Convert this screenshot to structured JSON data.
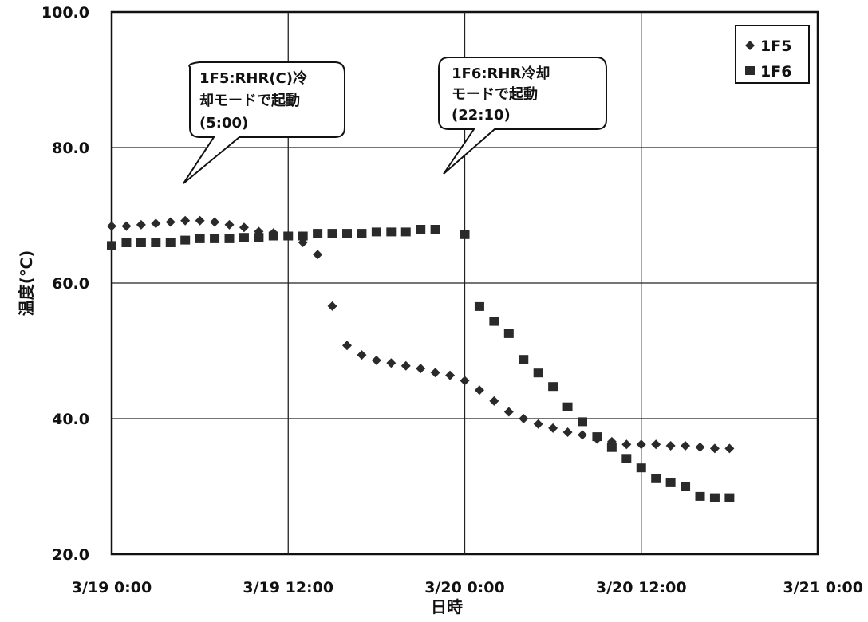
{
  "chart_data": {
    "type": "scatter",
    "title": "",
    "xlabel": "日時",
    "ylabel": "温度(℃)",
    "ylim": [
      20,
      100
    ],
    "xlim": [
      "3/19 0:00",
      "3/21 0:00"
    ],
    "yticks": [
      "20.0",
      "40.0",
      "60.0",
      "80.0",
      "100.0"
    ],
    "xticks": [
      "3/19 0:00",
      "3/19 12:00",
      "3/20 0:00",
      "3/20 12:00",
      "3/21 0:00"
    ],
    "grid": true,
    "legend_position": "top-right",
    "series": [
      {
        "name": "1F5",
        "marker": "diamond",
        "color": "#2a2a2a",
        "x": [
          "3/19 0:00",
          "3/19 1:00",
          "3/19 2:00",
          "3/19 3:00",
          "3/19 4:00",
          "3/19 5:00",
          "3/19 6:00",
          "3/19 7:00",
          "3/19 8:00",
          "3/19 9:00",
          "3/19 10:00",
          "3/19 11:00",
          "3/19 12:00",
          "3/19 13:00",
          "3/19 14:00",
          "3/19 15:00",
          "3/19 16:00",
          "3/19 17:00",
          "3/19 18:00",
          "3/19 19:00",
          "3/19 20:00",
          "3/19 21:00",
          "3/19 22:00",
          "3/19 23:00",
          "3/20 0:00",
          "3/20 1:00",
          "3/20 2:00",
          "3/20 3:00",
          "3/20 4:00",
          "3/20 5:00",
          "3/20 6:00",
          "3/20 7:00",
          "3/20 8:00",
          "3/20 9:00",
          "3/20 10:00",
          "3/20 11:00",
          "3/20 12:00",
          "3/20 13:00",
          "3/20 14:00",
          "3/20 15:00",
          "3/20 16:00",
          "3/20 17:00",
          "3/20 18:00"
        ],
        "y": [
          68.4,
          68.4,
          68.6,
          68.8,
          69.0,
          69.2,
          69.2,
          69.0,
          68.6,
          68.2,
          67.6,
          67.4,
          67.0,
          66.0,
          64.2,
          56.6,
          50.8,
          49.4,
          48.6,
          48.2,
          47.8,
          47.4,
          46.8,
          46.4,
          45.6,
          44.2,
          42.6,
          41.0,
          40.0,
          39.2,
          38.6,
          38.0,
          37.6,
          37.0,
          36.6,
          36.2,
          36.2,
          36.2,
          36.0,
          36.0,
          35.8,
          35.6,
          35.6
        ]
      },
      {
        "name": "1F6",
        "marker": "square",
        "color": "#2a2a2a",
        "x": [
          "3/19 0:00",
          "3/19 1:00",
          "3/19 2:00",
          "3/19 3:00",
          "3/19 4:00",
          "3/19 5:00",
          "3/19 6:00",
          "3/19 7:00",
          "3/19 8:00",
          "3/19 9:00",
          "3/19 10:00",
          "3/19 11:00",
          "3/19 12:00",
          "3/19 13:00",
          "3/19 14:00",
          "3/19 15:00",
          "3/19 16:00",
          "3/19 17:00",
          "3/19 18:00",
          "3/19 19:00",
          "3/19 20:00",
          "3/19 21:00",
          "3/19 22:00",
          "3/20 0:00",
          "3/20 1:00",
          "3/20 2:00",
          "3/20 3:00",
          "3/20 4:00",
          "3/20 5:00",
          "3/20 6:00",
          "3/20 7:00",
          "3/20 8:00",
          "3/20 9:00",
          "3/20 10:00",
          "3/20 11:00",
          "3/20 12:00",
          "3/20 13:00",
          "3/20 14:00",
          "3/20 15:00",
          "3/20 16:00",
          "3/20 17:00",
          "3/20 18:00"
        ],
        "y": [
          65.6,
          66.0,
          66.0,
          66.0,
          66.0,
          66.4,
          66.6,
          66.6,
          66.6,
          66.8,
          66.8,
          67.0,
          67.0,
          67.0,
          67.4,
          67.4,
          67.4,
          67.4,
          67.6,
          67.6,
          67.6,
          68.0,
          68.0,
          67.2,
          56.6,
          54.4,
          52.6,
          48.8,
          46.8,
          44.8,
          41.8,
          39.6,
          37.4,
          35.8,
          34.2,
          32.8,
          31.2,
          30.6,
          30.0,
          28.6,
          28.4,
          28.4
        ]
      }
    ],
    "annotations": [
      {
        "text_lines": [
          "1F5:RHR(C)冷",
          "却モードで起動",
          "(5:00)"
        ]
      },
      {
        "text_lines": [
          "1F6:RHR冷却",
          "モードで起動",
          "(22:10)"
        ]
      }
    ]
  }
}
